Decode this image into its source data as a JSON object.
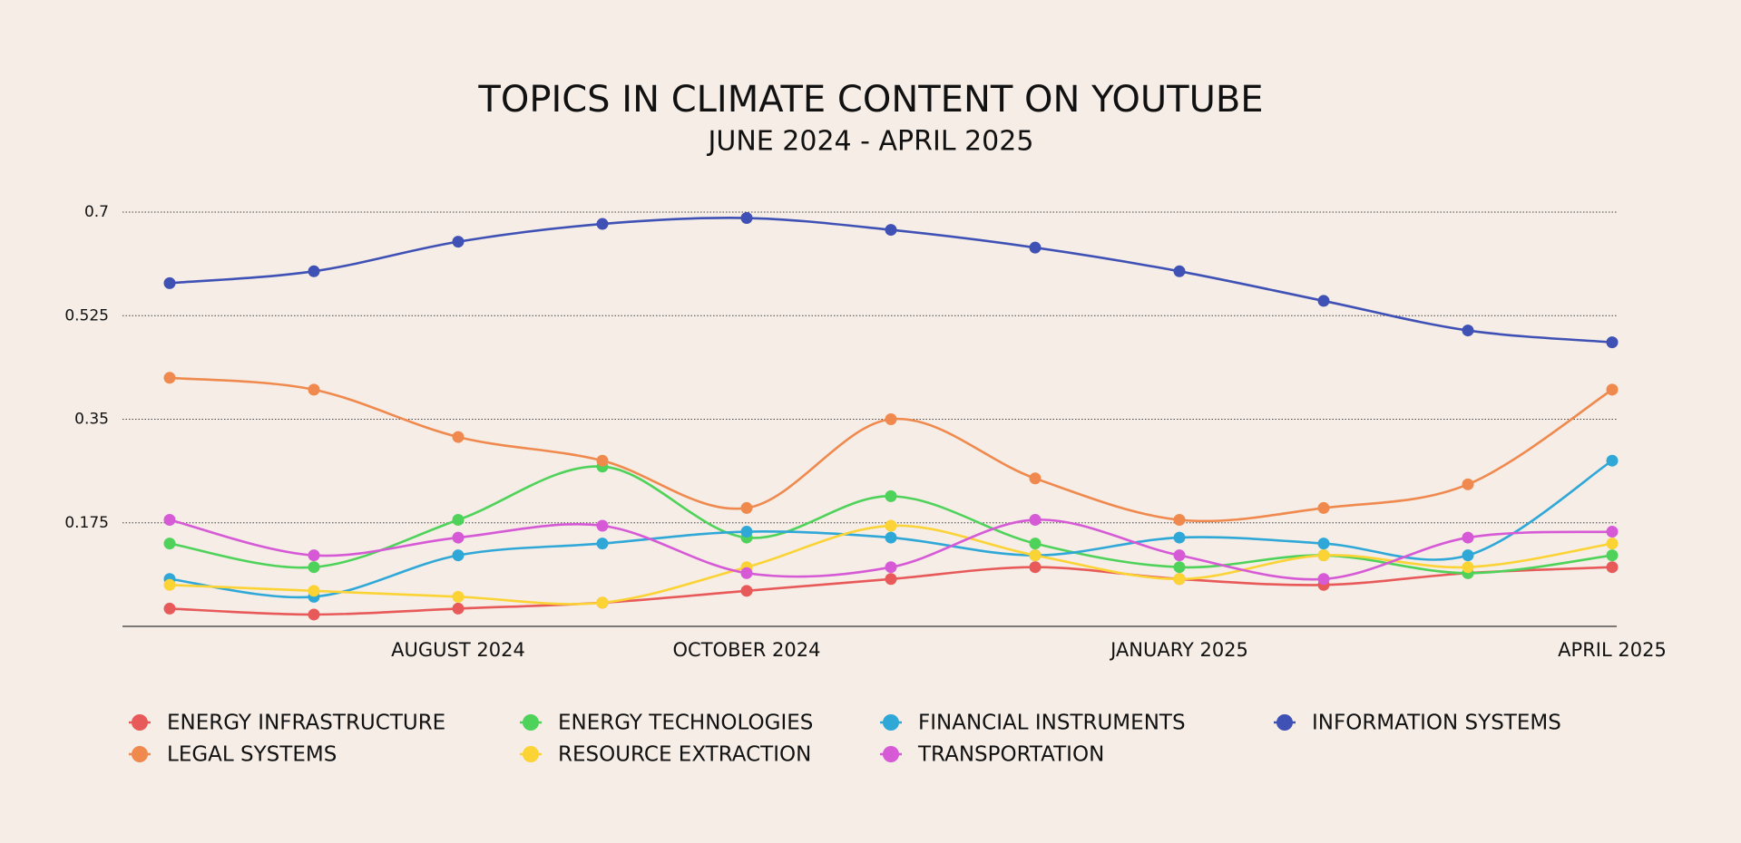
{
  "chart_data": {
    "type": "line",
    "title": "TOPICS IN CLIMATE CONTENT ON YOUTUBE",
    "subtitle": "JUNE 2024 - APRIL 2025",
    "categories": [
      null,
      null,
      "AUGUST 2024",
      null,
      "OCTOBER 2024",
      null,
      null,
      "JANUARY 2025",
      null,
      null,
      "APRIL 2025"
    ],
    "ylim": [
      0,
      0.7
    ],
    "yticks": [
      0.175,
      0.35,
      0.525,
      0.7
    ],
    "grid": true,
    "legend": "bottom",
    "series": [
      {
        "name": "ENERGY INFRASTRUCTURE",
        "color": "#e85a5a",
        "values": [
          0.03,
          0.02,
          0.03,
          0.04,
          0.06,
          0.08,
          0.1,
          0.08,
          0.07,
          0.09,
          0.1
        ]
      },
      {
        "name": "ENERGY TECHNOLOGIES",
        "color": "#4fd25a",
        "values": [
          0.14,
          0.1,
          0.18,
          0.27,
          0.15,
          0.22,
          0.14,
          0.1,
          0.12,
          0.09,
          0.12
        ]
      },
      {
        "name": "FINANCIAL INSTRUMENTS",
        "color": "#2fa8d8",
        "values": [
          0.08,
          0.05,
          0.12,
          0.14,
          0.16,
          0.15,
          0.12,
          0.15,
          0.14,
          0.12,
          0.28
        ]
      },
      {
        "name": "INFORMATION SYSTEMS",
        "color": "#3f51b5",
        "values": [
          0.58,
          0.6,
          0.65,
          0.68,
          0.69,
          0.67,
          0.64,
          0.6,
          0.55,
          0.5,
          0.48
        ]
      },
      {
        "name": "LEGAL SYSTEMS",
        "color": "#f0894e",
        "values": [
          0.42,
          0.4,
          0.32,
          0.28,
          0.2,
          0.35,
          0.25,
          0.18,
          0.2,
          0.24,
          0.4
        ]
      },
      {
        "name": "RESOURCE EXTRACTION",
        "color": "#fbd334",
        "values": [
          0.07,
          0.06,
          0.05,
          0.04,
          0.1,
          0.17,
          0.12,
          0.08,
          0.12,
          0.1,
          0.14
        ]
      },
      {
        "name": "TRANSPORTATION",
        "color": "#d659d6",
        "values": [
          0.18,
          0.12,
          0.15,
          0.17,
          0.09,
          0.1,
          0.18,
          0.12,
          0.08,
          0.15,
          0.16
        ]
      }
    ]
  }
}
